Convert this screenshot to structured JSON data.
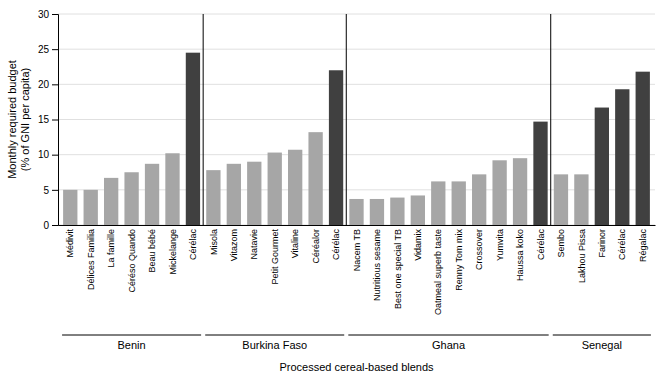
{
  "chart_data": {
    "type": "bar",
    "categories": [
      "Médivit",
      "Délices Familia",
      "La famille",
      "Céréso Quando",
      "Beau bébé",
      "Mickelange",
      "Cérélac",
      "Misola",
      "Vitazom",
      "Natavie",
      "Petit Gourmet",
      "Vitaline",
      "Céréalor",
      "Cérélac",
      "Nacem TB",
      "Nutritious sesame",
      "Best one special TB",
      "Vidamix",
      "Oatmeal superb taste",
      "Renny Tom mix",
      "Crossover",
      "Yumvita",
      "Haussa koko",
      "Cérélac",
      "Sembo",
      "Lakhou Pissa",
      "Farinor",
      "Cérélac",
      "Régalac"
    ],
    "values": [
      5.0,
      5.0,
      6.7,
      7.5,
      8.7,
      10.2,
      24.5,
      7.8,
      8.7,
      9.0,
      10.3,
      10.7,
      13.2,
      22.0,
      3.7,
      3.7,
      3.9,
      4.2,
      6.2,
      6.2,
      7.2,
      9.2,
      9.5,
      14.7,
      7.2,
      7.2,
      16.7,
      19.3,
      21.8
    ],
    "colors": [
      "#a6a6a6",
      "#a6a6a6",
      "#a6a6a6",
      "#a6a6a6",
      "#a6a6a6",
      "#a6a6a6",
      "#404040",
      "#a6a6a6",
      "#a6a6a6",
      "#a6a6a6",
      "#a6a6a6",
      "#a6a6a6",
      "#a6a6a6",
      "#404040",
      "#a6a6a6",
      "#a6a6a6",
      "#a6a6a6",
      "#a6a6a6",
      "#a6a6a6",
      "#a6a6a6",
      "#a6a6a6",
      "#a6a6a6",
      "#a6a6a6",
      "#404040",
      "#a6a6a6",
      "#a6a6a6",
      "#404040",
      "#404040",
      "#404040"
    ],
    "groups": [
      {
        "name": "Benin",
        "count": 7
      },
      {
        "name": "Burkina Faso",
        "count": 7
      },
      {
        "name": "Ghana",
        "count": 10
      },
      {
        "name": "Senegal",
        "count": 5
      }
    ],
    "ylabel": "Monthly required budget\n(% of GNI per capita)",
    "xlabel": "Processed cereal-based blends",
    "ylim": [
      0,
      30
    ],
    "yticks": [
      0,
      5,
      10,
      15,
      20,
      25,
      30
    ],
    "grid": true
  }
}
